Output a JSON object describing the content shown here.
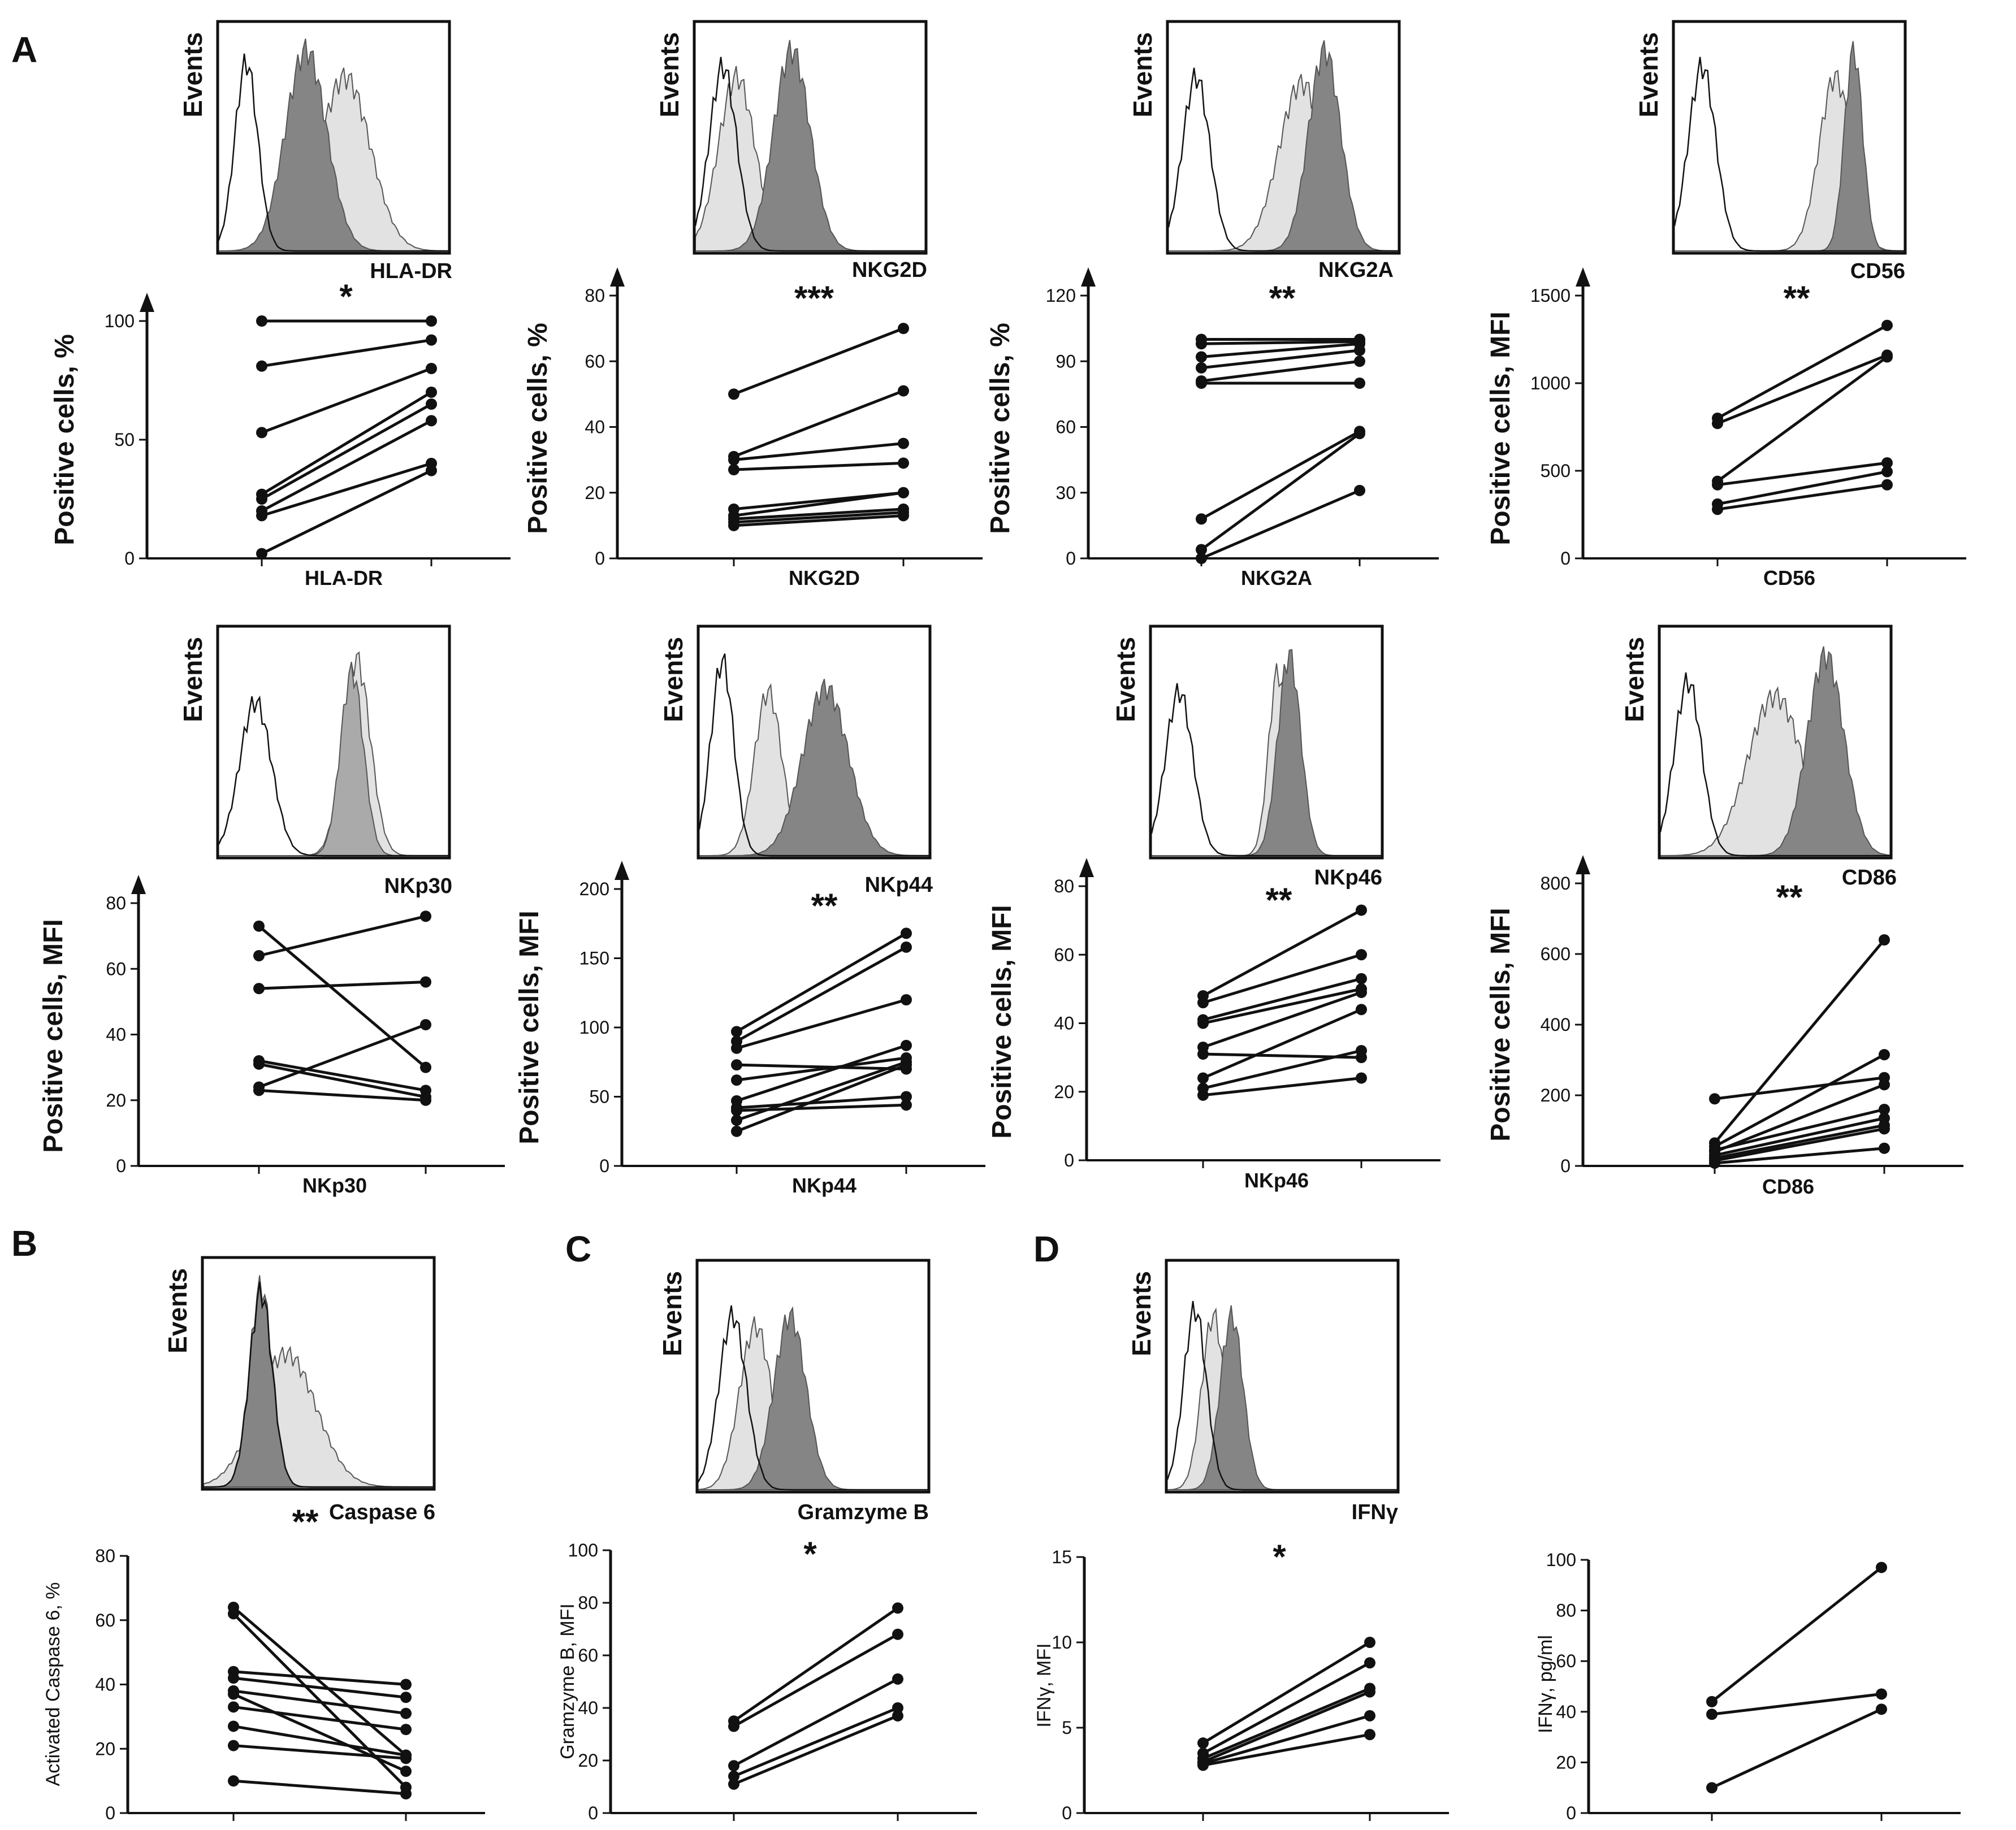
{
  "figure": {
    "panel_letters": [
      "A",
      "B",
      "C",
      "D"
    ],
    "events_label": "Events",
    "colors": {
      "ink": "#111111",
      "light_gray": "#e2e2e2",
      "mid_gray": "#aaaaaa",
      "dark_gray": "#858585"
    }
  },
  "chart_data": [
    {
      "id": "hla-dr",
      "type": "line",
      "histogram_label": "HLA-DR",
      "xlabel": "HLA-DR",
      "ylabel": "Positive cells, %",
      "ylim": [
        0,
        100
      ],
      "yticks": [
        0,
        50,
        100
      ],
      "significance": "*",
      "axis_arrow": true,
      "series": [
        {
          "values": [
            100,
            100
          ]
        },
        {
          "values": [
            81,
            92
          ]
        },
        {
          "values": [
            53,
            80
          ]
        },
        {
          "values": [
            27,
            70
          ]
        },
        {
          "values": [
            25,
            65
          ]
        },
        {
          "values": [
            20,
            58
          ]
        },
        {
          "values": [
            18,
            40
          ]
        },
        {
          "values": [
            2,
            37
          ]
        }
      ]
    },
    {
      "id": "nkg2d",
      "type": "line",
      "histogram_label": "NKG2D",
      "xlabel": "NKG2D",
      "ylabel": "Positive cells, %",
      "ylim": [
        0,
        80
      ],
      "yticks": [
        0,
        20,
        40,
        60,
        80
      ],
      "significance": "***",
      "axis_arrow": true,
      "series": [
        {
          "values": [
            50,
            70
          ]
        },
        {
          "values": [
            31,
            51
          ]
        },
        {
          "values": [
            30,
            35
          ]
        },
        {
          "values": [
            27,
            29
          ]
        },
        {
          "values": [
            15,
            20
          ]
        },
        {
          "values": [
            13,
            20
          ]
        },
        {
          "values": [
            12,
            15
          ]
        },
        {
          "values": [
            11,
            14
          ]
        },
        {
          "values": [
            10,
            13
          ]
        }
      ]
    },
    {
      "id": "nkg2a",
      "type": "line",
      "histogram_label": "NKG2A",
      "xlabel": "NKG2A",
      "ylabel": "Positive cells, %",
      "ylim": [
        0,
        120
      ],
      "yticks": [
        0,
        30,
        60,
        90,
        120
      ],
      "significance": "**",
      "axis_arrow": true,
      "series": [
        {
          "values": [
            100,
            100
          ]
        },
        {
          "values": [
            98,
            99
          ]
        },
        {
          "values": [
            92,
            98
          ]
        },
        {
          "values": [
            87,
            95
          ]
        },
        {
          "values": [
            81,
            90
          ]
        },
        {
          "values": [
            80,
            80
          ]
        },
        {
          "values": [
            18,
            58
          ]
        },
        {
          "values": [
            4,
            57
          ]
        },
        {
          "values": [
            0,
            31
          ]
        }
      ]
    },
    {
      "id": "cd56",
      "type": "line",
      "histogram_label": "CD56",
      "xlabel": "CD56",
      "ylabel": "Positive cells, MFI",
      "ylim": [
        0,
        1500
      ],
      "yticks": [
        0,
        500,
        1000,
        1500
      ],
      "significance": "**",
      "axis_arrow": true,
      "series": [
        {
          "values": [
            800,
            1330
          ]
        },
        {
          "values": [
            770,
            1160
          ]
        },
        {
          "values": [
            440,
            1150
          ]
        },
        {
          "values": [
            420,
            545
          ]
        },
        {
          "values": [
            310,
            495
          ]
        },
        {
          "values": [
            280,
            420
          ]
        }
      ]
    },
    {
      "id": "nkp30",
      "type": "line",
      "histogram_label": "NKp30",
      "xlabel": "NKp30",
      "ylabel": "Positive cells, MFI",
      "ylim": [
        0,
        80
      ],
      "yticks": [
        0,
        20,
        40,
        60,
        80
      ],
      "significance": "",
      "axis_arrow": true,
      "series": [
        {
          "values": [
            73,
            30
          ]
        },
        {
          "values": [
            64,
            76
          ]
        },
        {
          "values": [
            54,
            56
          ]
        },
        {
          "values": [
            32,
            23
          ]
        },
        {
          "values": [
            31,
            21
          ]
        },
        {
          "values": [
            24,
            43
          ]
        },
        {
          "values": [
            23,
            20
          ]
        }
      ]
    },
    {
      "id": "nkp44",
      "type": "line",
      "histogram_label": "NKp44",
      "xlabel": "NKp44",
      "ylabel": "Positive cells, MFI",
      "ylim": [
        0,
        200
      ],
      "yticks": [
        0,
        50,
        100,
        150,
        200
      ],
      "significance": "**",
      "axis_arrow": true,
      "series": [
        {
          "values": [
            97,
            168
          ]
        },
        {
          "values": [
            90,
            158
          ]
        },
        {
          "values": [
            85,
            120
          ]
        },
        {
          "values": [
            73,
            70
          ]
        },
        {
          "values": [
            62,
            78
          ]
        },
        {
          "values": [
            47,
            87
          ]
        },
        {
          "values": [
            42,
            50
          ]
        },
        {
          "values": [
            40,
            44
          ]
        },
        {
          "values": [
            33,
            75
          ]
        },
        {
          "values": [
            25,
            73
          ]
        }
      ]
    },
    {
      "id": "nkp46",
      "type": "line",
      "histogram_label": "NKp46",
      "xlabel": "NKp46",
      "ylabel": "Positive cells, MFI",
      "ylim": [
        0,
        80
      ],
      "yticks": [
        0,
        20,
        40,
        60,
        80
      ],
      "significance": "**",
      "axis_arrow": true,
      "series": [
        {
          "values": [
            48,
            73
          ]
        },
        {
          "values": [
            46,
            60
          ]
        },
        {
          "values": [
            41,
            53
          ]
        },
        {
          "values": [
            40,
            50
          ]
        },
        {
          "values": [
            33,
            49
          ]
        },
        {
          "values": [
            31,
            30
          ]
        },
        {
          "values": [
            24,
            44
          ]
        },
        {
          "values": [
            21,
            32
          ]
        },
        {
          "values": [
            19,
            24
          ]
        }
      ]
    },
    {
      "id": "cd86",
      "type": "line",
      "histogram_label": "CD86",
      "xlabel": "CD86",
      "ylabel": "Positive cells, MFI",
      "ylim": [
        0,
        800
      ],
      "yticks": [
        0,
        200,
        400,
        600,
        800
      ],
      "significance": "**",
      "axis_arrow": true,
      "series": [
        {
          "values": [
            190,
            250
          ]
        },
        {
          "values": [
            65,
            640
          ]
        },
        {
          "values": [
            55,
            315
          ]
        },
        {
          "values": [
            45,
            160
          ]
        },
        {
          "values": [
            40,
            230
          ]
        },
        {
          "values": [
            30,
            135
          ]
        },
        {
          "values": [
            22,
            115
          ]
        },
        {
          "values": [
            15,
            105
          ]
        },
        {
          "values": [
            8,
            50
          ]
        }
      ]
    },
    {
      "id": "caspase6",
      "type": "line",
      "histogram_label": "Caspase 6",
      "xlabel": "",
      "ylabel": "Activated Caspase 6, %",
      "ylim": [
        0,
        80
      ],
      "yticks": [
        0,
        20,
        40,
        60,
        80
      ],
      "significance": "**",
      "axis_arrow": false,
      "series": [
        {
          "values": [
            64,
            18
          ]
        },
        {
          "values": [
            62,
            8
          ]
        },
        {
          "values": [
            44,
            40
          ]
        },
        {
          "values": [
            42,
            36
          ]
        },
        {
          "values": [
            38,
            31
          ]
        },
        {
          "values": [
            37,
            13
          ]
        },
        {
          "values": [
            33,
            26
          ]
        },
        {
          "values": [
            27,
            18
          ]
        },
        {
          "values": [
            21,
            17
          ]
        },
        {
          "values": [
            10,
            6
          ]
        }
      ]
    },
    {
      "id": "gramzyme-b",
      "type": "line",
      "histogram_label": "Gramzyme B",
      "xlabel": "",
      "ylabel": "Gramzyme B, MFI",
      "ylim": [
        0,
        100
      ],
      "yticks": [
        0,
        20,
        40,
        60,
        80,
        100
      ],
      "significance": "*",
      "axis_arrow": false,
      "series": [
        {
          "values": [
            35,
            78
          ]
        },
        {
          "values": [
            33,
            68
          ]
        },
        {
          "values": [
            18,
            51
          ]
        },
        {
          "values": [
            14,
            40
          ]
        },
        {
          "values": [
            11,
            37
          ]
        }
      ]
    },
    {
      "id": "ifng-mfi",
      "type": "line",
      "histogram_label": "IFNγ",
      "xlabel": "",
      "ylabel": "IFNγ, MFI",
      "ylim": [
        0,
        15
      ],
      "yticks": [
        0,
        5,
        10,
        15
      ],
      "significance": "*",
      "axis_arrow": false,
      "series": [
        {
          "values": [
            4.1,
            10
          ]
        },
        {
          "values": [
            3.5,
            8.8
          ]
        },
        {
          "values": [
            3.2,
            7.3
          ]
        },
        {
          "values": [
            3.0,
            7.1
          ]
        },
        {
          "values": [
            2.9,
            5.7
          ]
        },
        {
          "values": [
            2.8,
            4.6
          ]
        }
      ]
    },
    {
      "id": "ifng-pgml",
      "type": "line",
      "histogram_label": "",
      "xlabel": "",
      "ylabel": "IFNγ, pg/ml",
      "ylim": [
        0,
        100
      ],
      "yticks": [
        0,
        20,
        40,
        60,
        80,
        100
      ],
      "significance": "",
      "axis_arrow": false,
      "series": [
        {
          "values": [
            44,
            97
          ]
        },
        {
          "values": [
            39,
            47
          ]
        },
        {
          "values": [
            10,
            41
          ]
        }
      ]
    }
  ]
}
